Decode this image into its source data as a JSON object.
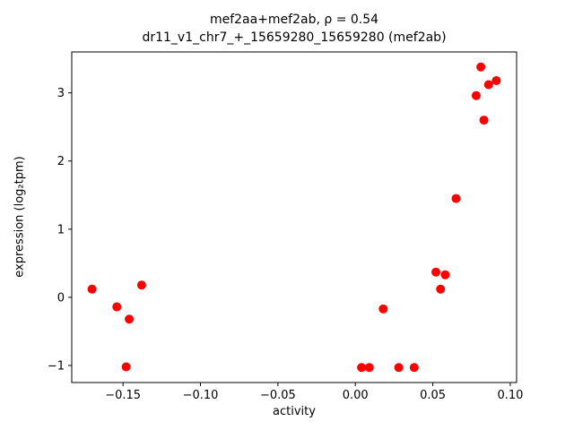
{
  "figure": {
    "title_line1": "mef2aa+mef2ab, ρ = 0.54",
    "title_line2": "dr11_v1_chr7_+_15659280_15659280 (mef2ab)",
    "xlabel": "activity",
    "ylabel": "expression (log₂tpm)"
  },
  "chart_data": {
    "type": "scatter",
    "title": "mef2aa+mef2ab, ρ = 0.54",
    "subtitle": "dr11_v1_chr7_+_15659280_15659280 (mef2ab)",
    "xlabel": "activity",
    "ylabel": "expression (log2 tpm)",
    "legend": "none",
    "grid": false,
    "marker_color": "#ff0000",
    "xlim": [
      -0.1831,
      0.1041
    ],
    "ylim": [
      -1.25,
      3.6
    ],
    "x_ticks": {
      "values": [
        -0.15,
        -0.1,
        -0.05,
        0.0,
        0.05,
        0.1
      ],
      "labels": [
        "−0.15",
        "−0.10",
        "−0.05",
        "0.00",
        "0.05",
        "0.10"
      ]
    },
    "y_ticks": {
      "values": [
        -1,
        0,
        1,
        2,
        3
      ],
      "labels": [
        "−1",
        "0",
        "1",
        "2",
        "3"
      ]
    },
    "points": [
      [
        -0.17,
        0.12
      ],
      [
        -0.154,
        -0.14
      ],
      [
        -0.148,
        -1.02
      ],
      [
        -0.146,
        -0.32
      ],
      [
        -0.138,
        0.18
      ],
      [
        0.004,
        -1.03
      ],
      [
        0.009,
        -1.03
      ],
      [
        0.018,
        -0.17
      ],
      [
        0.028,
        -1.03
      ],
      [
        0.038,
        -1.03
      ],
      [
        0.052,
        0.37
      ],
      [
        0.055,
        0.12
      ],
      [
        0.058,
        0.33
      ],
      [
        0.065,
        1.45
      ],
      [
        0.078,
        2.96
      ],
      [
        0.081,
        3.38
      ],
      [
        0.083,
        2.6
      ],
      [
        0.086,
        3.12
      ],
      [
        0.091,
        3.18
      ]
    ]
  }
}
